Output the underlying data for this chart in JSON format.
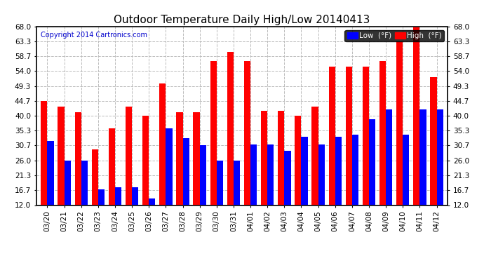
{
  "title": "Outdoor Temperature Daily High/Low 20140413",
  "copyright": "Copyright 2014 Cartronics.com",
  "legend_low": "Low  (°F)",
  "legend_high": "High  (°F)",
  "dates": [
    "03/20",
    "03/21",
    "03/22",
    "03/23",
    "03/24",
    "03/25",
    "03/26",
    "03/27",
    "03/28",
    "03/29",
    "03/30",
    "03/31",
    "04/01",
    "04/02",
    "04/03",
    "04/04",
    "04/05",
    "04/06",
    "04/07",
    "04/08",
    "04/09",
    "04/10",
    "04/11",
    "04/12"
  ],
  "highs": [
    44.7,
    42.8,
    41.0,
    29.5,
    36.0,
    42.8,
    40.0,
    50.0,
    41.0,
    41.0,
    57.2,
    60.0,
    57.2,
    41.5,
    41.5,
    40.0,
    42.8,
    55.4,
    55.4,
    55.4,
    57.2,
    63.3,
    68.0,
    52.0
  ],
  "lows": [
    32.0,
    26.0,
    26.0,
    17.0,
    17.5,
    17.6,
    14.0,
    36.0,
    33.0,
    30.7,
    26.0,
    26.0,
    31.0,
    31.0,
    29.0,
    33.5,
    31.0,
    33.5,
    34.0,
    39.0,
    42.0,
    34.0,
    42.0,
    42.0
  ],
  "ylim": [
    12.0,
    68.0
  ],
  "yticks": [
    12.0,
    16.7,
    21.3,
    26.0,
    30.7,
    35.3,
    40.0,
    44.7,
    49.3,
    54.0,
    58.7,
    63.3,
    68.0
  ],
  "bar_width": 0.38,
  "high_color": "#ff0000",
  "low_color": "#0000ff",
  "bg_color": "#ffffff",
  "grid_color": "#bbbbbb",
  "title_fontsize": 11,
  "axis_fontsize": 7.5,
  "copyright_color": "#0000cc",
  "border_color": "#222222"
}
